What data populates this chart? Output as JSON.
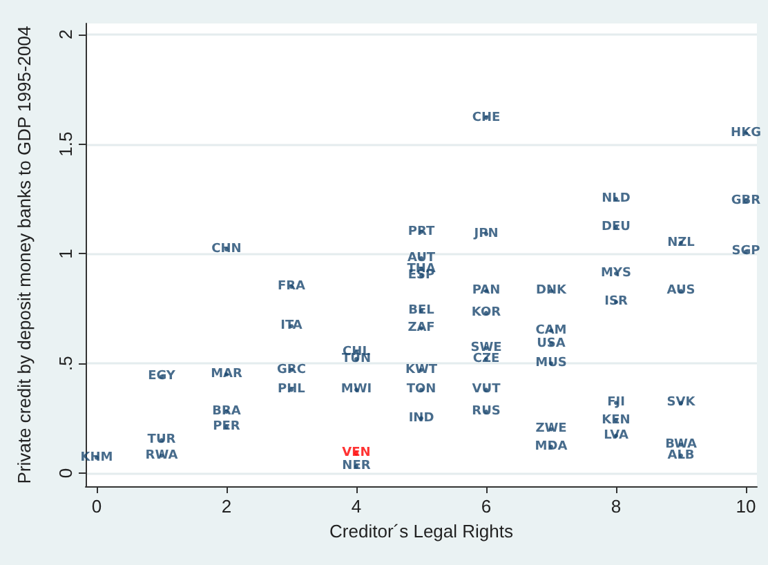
{
  "chart_data": {
    "type": "scatter",
    "xlabel": "Creditor´s Legal Rights",
    "ylabel": "Private credit by deposit money banks to GDP 1995-2004",
    "xlim": [
      -0.17,
      10.17
    ],
    "xticks": [
      0,
      2,
      4,
      6,
      8,
      10
    ],
    "ylim": [
      -0.06,
      2.05
    ],
    "yticks": [
      0,
      {
        "value": 0.5,
        "label": ".5"
      },
      1,
      1.5,
      2
    ],
    "grid": "y",
    "marker": "none",
    "series": [
      {
        "color": "#1a476f",
        "x": [
          0,
          1,
          1,
          1,
          2,
          2,
          2,
          2,
          3,
          3,
          3,
          3,
          4,
          4,
          4,
          4,
          5,
          5,
          5,
          5,
          5,
          5,
          5,
          5,
          5,
          6,
          6,
          6,
          6,
          6,
          6,
          6,
          6,
          7,
          7,
          7,
          7,
          7,
          7,
          8,
          8,
          8,
          8,
          8,
          8,
          8,
          9,
          9,
          9,
          9,
          9,
          10,
          10,
          10
        ],
        "values": [
          0.07,
          0.44,
          0.15,
          0.08,
          1.02,
          0.45,
          0.28,
          0.21,
          0.85,
          0.67,
          0.47,
          0.38,
          0.55,
          0.52,
          0.38,
          0.03,
          1.1,
          0.98,
          0.93,
          0.9,
          0.74,
          0.66,
          0.47,
          0.38,
          0.25,
          1.62,
          1.09,
          0.83,
          0.73,
          0.57,
          0.52,
          0.38,
          0.28,
          0.83,
          0.65,
          0.59,
          0.5,
          0.2,
          0.12,
          1.25,
          1.12,
          0.91,
          0.78,
          0.32,
          0.24,
          0.17,
          1.05,
          0.83,
          0.32,
          0.13,
          0.08,
          1.55,
          1.24,
          1.01
        ],
        "value_labels": [
          "KHM",
          "EGY",
          "TUR",
          "RWA",
          "CHN",
          "MAR",
          "BRA",
          "PER",
          "FRA",
          "ITA",
          "GRC",
          "PHL",
          "CHL",
          "TUN",
          "MWI",
          "NER",
          "PRT",
          "AUT",
          "THA",
          "ESP",
          "BEL",
          "ZAF",
          "KWT",
          "TON",
          "IND",
          "CHE",
          "JPN",
          "PAN",
          "KOR",
          "SWE",
          "CZE",
          "VUT",
          "RUS",
          "DNK",
          "CAM",
          "USA",
          "MUS",
          "ZWE",
          "MDA",
          "NLD",
          "DEU",
          "MYS",
          "ISR",
          "FJI",
          "KEN",
          "LVA",
          "NZL",
          "AUS",
          "SVK",
          "BWA",
          "ALB",
          "HKG",
          "GBR",
          "SGP"
        ]
      },
      {
        "color": "#ff0000",
        "x": [
          4
        ],
        "values": [
          0.09
        ],
        "value_labels": [
          "VEN"
        ]
      }
    ]
  }
}
